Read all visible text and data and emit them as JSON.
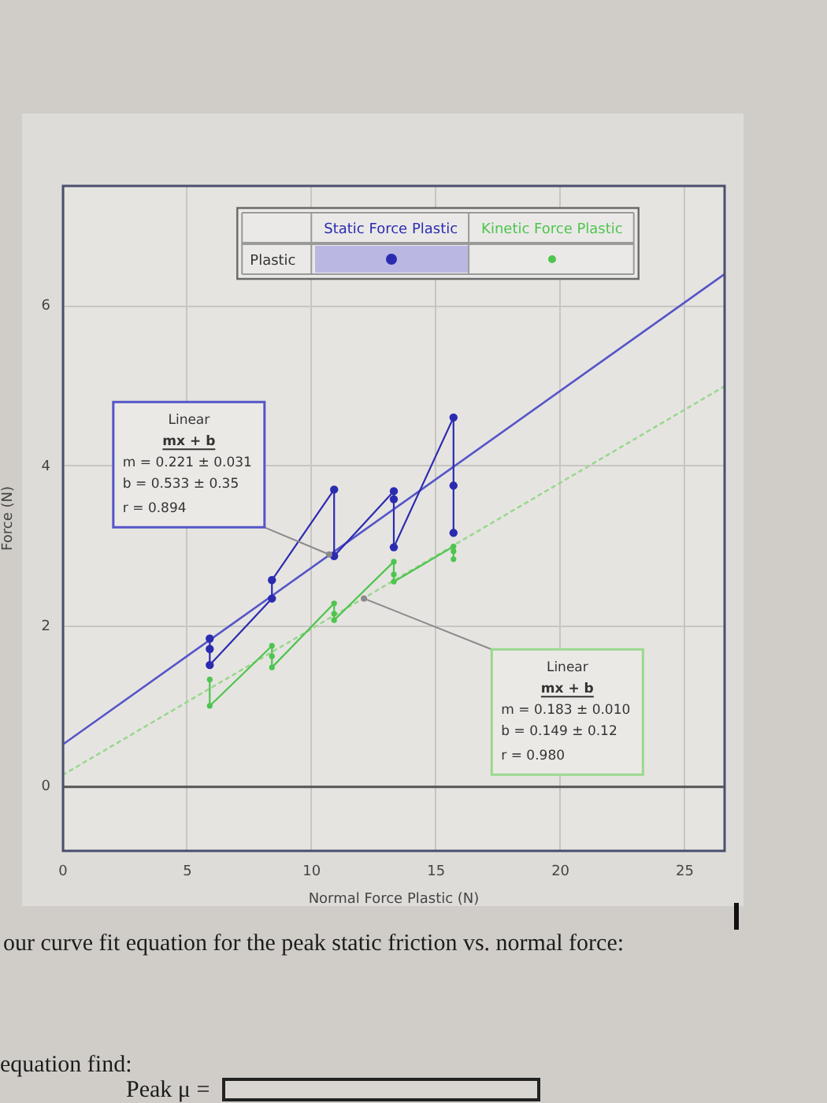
{
  "chart_data": {
    "type": "line",
    "xlabel": "Normal Force Plastic (N)",
    "ylabel": "Force (N)",
    "legend_title": "Plastic",
    "xlim": [
      0,
      26.6
    ],
    "ylim": [
      -0.8,
      7.5
    ],
    "xticks": [
      0,
      5,
      10,
      15,
      20,
      25
    ],
    "yticks": [
      0,
      2,
      4,
      6
    ],
    "grid": true,
    "legend": "top",
    "ref_lines": [
      {
        "axis": "y",
        "value": 0,
        "color": "#555555"
      }
    ],
    "series": [
      {
        "name": "Static Force Plastic",
        "color": "#2b2bb0",
        "marker": "circle",
        "line_style": "solid",
        "x": [
          5.9,
          5.9,
          5.9,
          8.4,
          8.4,
          10.9,
          10.9,
          13.3,
          13.3,
          13.3,
          15.7,
          15.7,
          15.7
        ],
        "values": [
          1.85,
          1.72,
          1.52,
          2.35,
          2.58,
          3.71,
          2.88,
          3.69,
          3.59,
          2.99,
          4.61,
          3.76,
          3.17
        ]
      },
      {
        "name": "Kinetic Force Plastic",
        "color": "#4fc44f",
        "marker": "circle",
        "line_style": "solid",
        "x": [
          5.9,
          5.9,
          8.4,
          8.4,
          8.4,
          10.9,
          10.9,
          10.9,
          13.3,
          13.3,
          13.3,
          15.7,
          15.7,
          15.7
        ],
        "values": [
          1.34,
          1.01,
          1.76,
          1.63,
          1.49,
          2.29,
          2.16,
          2.08,
          2.81,
          2.65,
          2.56,
          3.0,
          2.94,
          2.84
        ]
      },
      {
        "type": "line",
        "color": "#5555c8",
        "marker": "none",
        "line_style": "solid",
        "x": [
          0,
          26.6
        ],
        "values": [
          0.53,
          6.4
        ]
      },
      {
        "type": "line",
        "color": "#9ad88e",
        "marker": "none",
        "line_style": "dotted",
        "x": [
          0,
          26.6
        ],
        "values": [
          0.15,
          5.0
        ]
      }
    ],
    "annotations": [
      {
        "text": "Linear\nmx + b\nm = 0.221 ± 0.031\nb = 0.533 ± 0.35\nr = 0.894",
        "x": 10.7,
        "y": 2.9
      },
      {
        "text": "Linear\nmx + b\nm = 0.183 ± 0.010\nb = 0.149 ± 0.12\nr = 0.980",
        "x": 12.1,
        "y": 2.35
      },
      "our curve fit equation for the peak static friction vs. normal force:",
      "equation find:",
      "Peak μ ="
    ]
  }
}
